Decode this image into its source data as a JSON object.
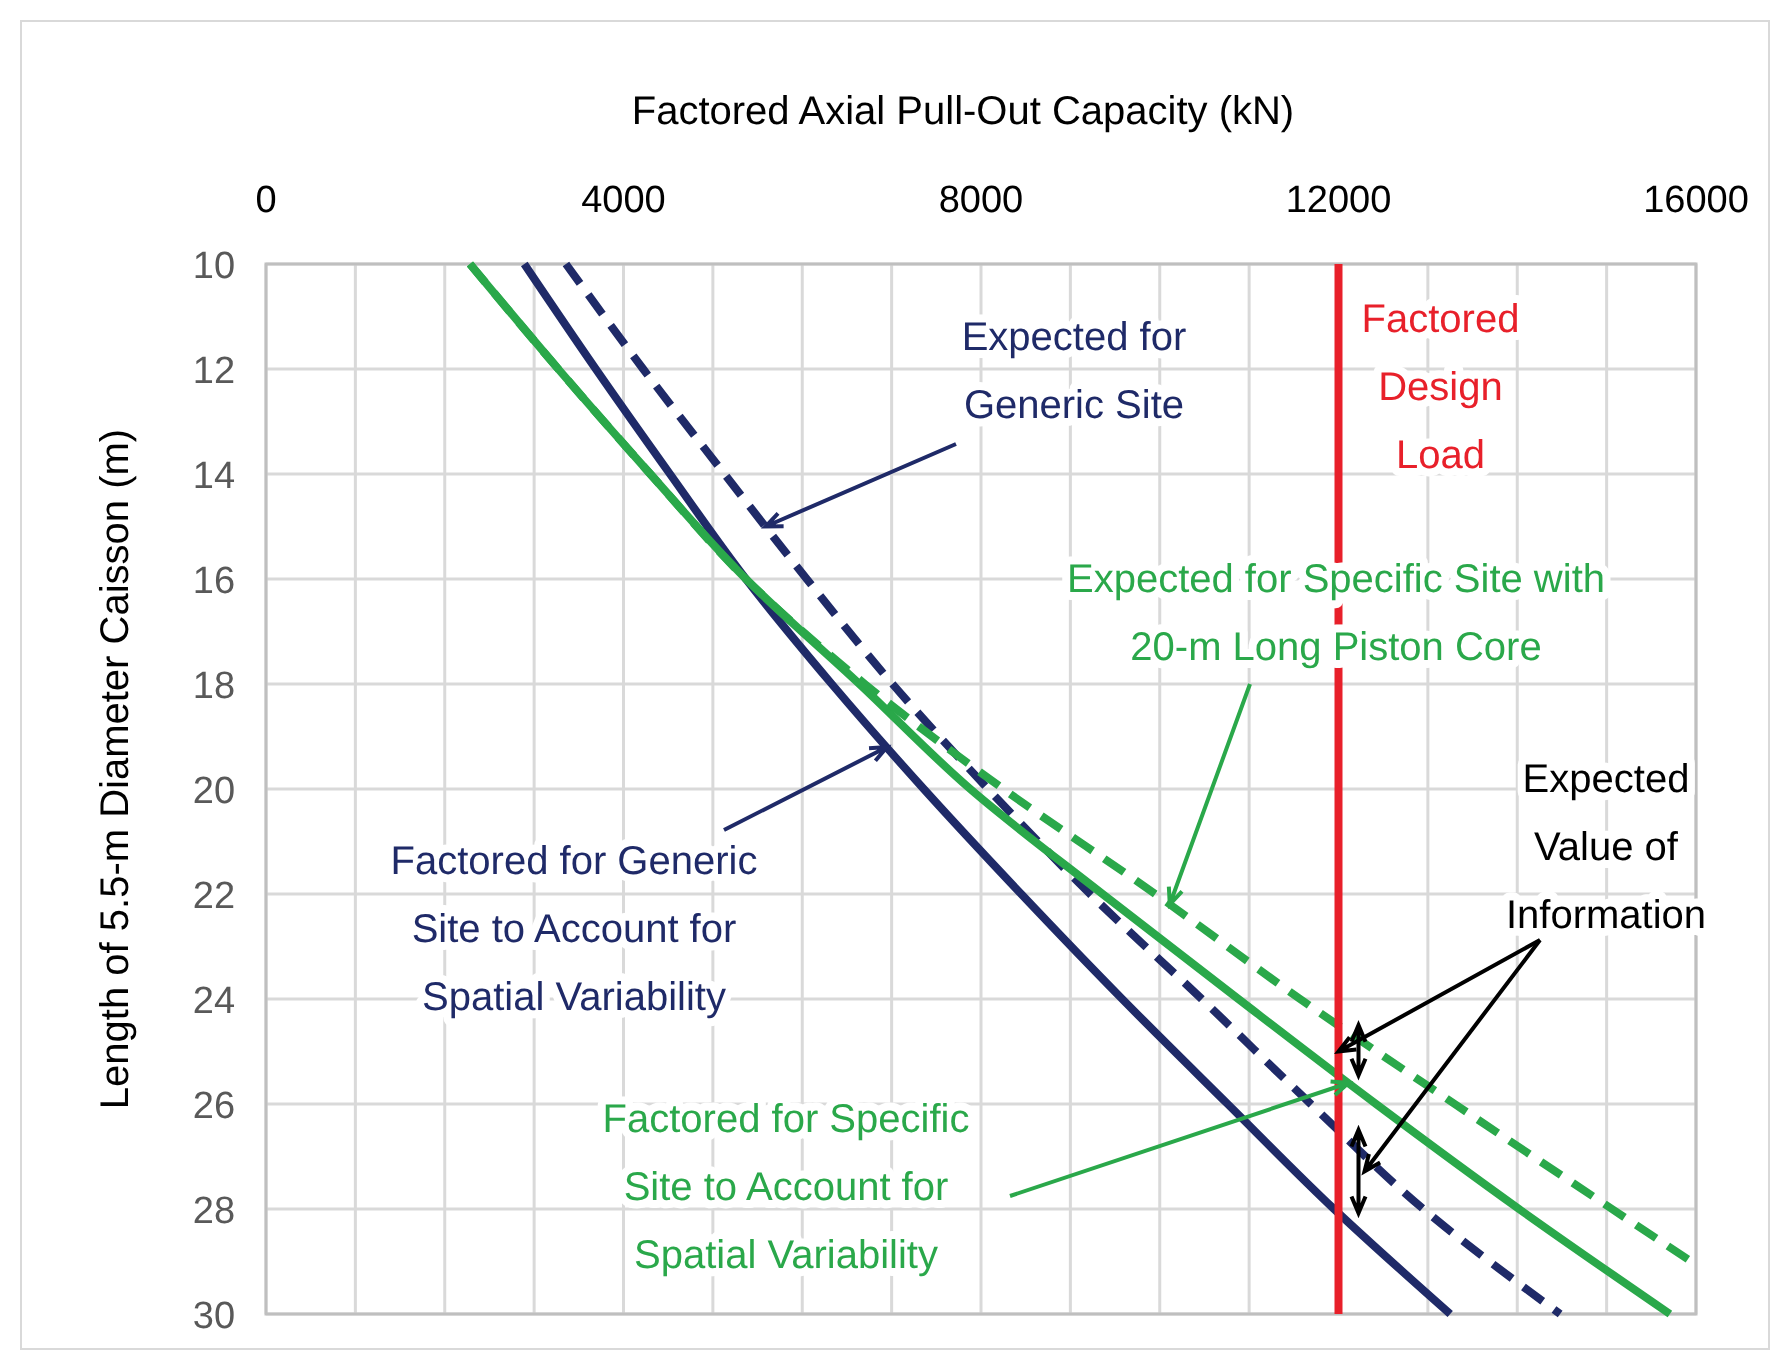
{
  "chart_data": {
    "type": "line",
    "xlabel": "Factored Axial Pull-Out Capacity (kN)",
    "ylabel": "Length of 5.5-m Diameter Caisson (m)",
    "xlim": [
      0,
      16000
    ],
    "xticks": [
      0,
      {
        "value": 1000,
        "label": null
      },
      {
        "value": 2000,
        "label": null
      },
      {
        "value": 3000,
        "label": null
      },
      4000,
      {
        "value": 5000,
        "label": null
      },
      {
        "value": 6000,
        "label": null
      },
      {
        "value": 7000,
        "label": null
      },
      8000,
      {
        "value": 9000,
        "label": null
      },
      {
        "value": 10000,
        "label": null
      },
      {
        "value": 11000,
        "label": null
      },
      12000,
      {
        "value": 13000,
        "label": null
      },
      {
        "value": 14000,
        "label": null
      },
      {
        "value": 15000,
        "label": null
      },
      16000
    ],
    "ylim": [
      30,
      10
    ],
    "yticks": [
      10,
      12,
      14,
      16,
      18,
      20,
      22,
      24,
      26,
      28,
      30
    ],
    "grid": true,
    "marker": "none",
    "series": [
      {
        "color": "#1f2a68",
        "line_style": "solid",
        "x": [
          2890,
          3690,
          4520,
          5370,
          6330,
          7360,
          8450,
          9580,
          10760,
          11950,
          13250
        ],
        "values": [
          10,
          12,
          14,
          16,
          18,
          20,
          22,
          24,
          26,
          28,
          30
        ]
      },
      {
        "color": "#1f2a68",
        "line_style": "dashed",
        "x": [
          3356,
          4220,
          5130,
          6050,
          7010,
          8080,
          9220,
          10470,
          11690,
          12950,
          14480
        ],
        "values": [
          10,
          12,
          14,
          16,
          18,
          20,
          22,
          24,
          26,
          28,
          30
        ]
      },
      {
        "color": "#2aa84a",
        "line_style": "solid",
        "x": [
          2282,
          3270,
          4300,
          5370,
          6640,
          7880,
          9360,
          10880,
          12420,
          14020,
          15708
        ],
        "values": [
          10,
          12,
          14,
          16,
          18,
          20,
          22,
          24,
          26,
          28,
          30
        ]
      },
      {
        "color": "#2aa84a",
        "line_style": "dashed",
        "x": [
          2282,
          3270,
          4300,
          5370,
          6700,
          8250,
          9950,
          11570,
          13300,
          15060,
          16000
        ],
        "values": [
          10,
          12,
          14,
          16,
          18,
          20,
          22,
          24,
          26,
          28,
          29.06
        ]
      }
    ],
    "ref_lines": [
      {
        "axis": "x",
        "value": 12000,
        "label": "Factored Design Load",
        "color": "#e8202a"
      }
    ],
    "annotations": [
      {
        "text": "Factored for Generic Site to Account for Spatial Variability",
        "x": 6948,
        "y": 19.2
      },
      {
        "text": "Expected for Generic Site",
        "x": 5590,
        "y": 15
      },
      {
        "text": "Factored for Specific Site to Account for Spatial Variability",
        "x": 12112,
        "y": 25.6
      },
      {
        "text": "Expected for Specific Site with 20-m Long Piston Core",
        "x": 10112,
        "y": 22.2
      },
      {
        "text": "Expected Value of Information",
        "x": 12000,
        "y": 25
      }
    ]
  }
}
